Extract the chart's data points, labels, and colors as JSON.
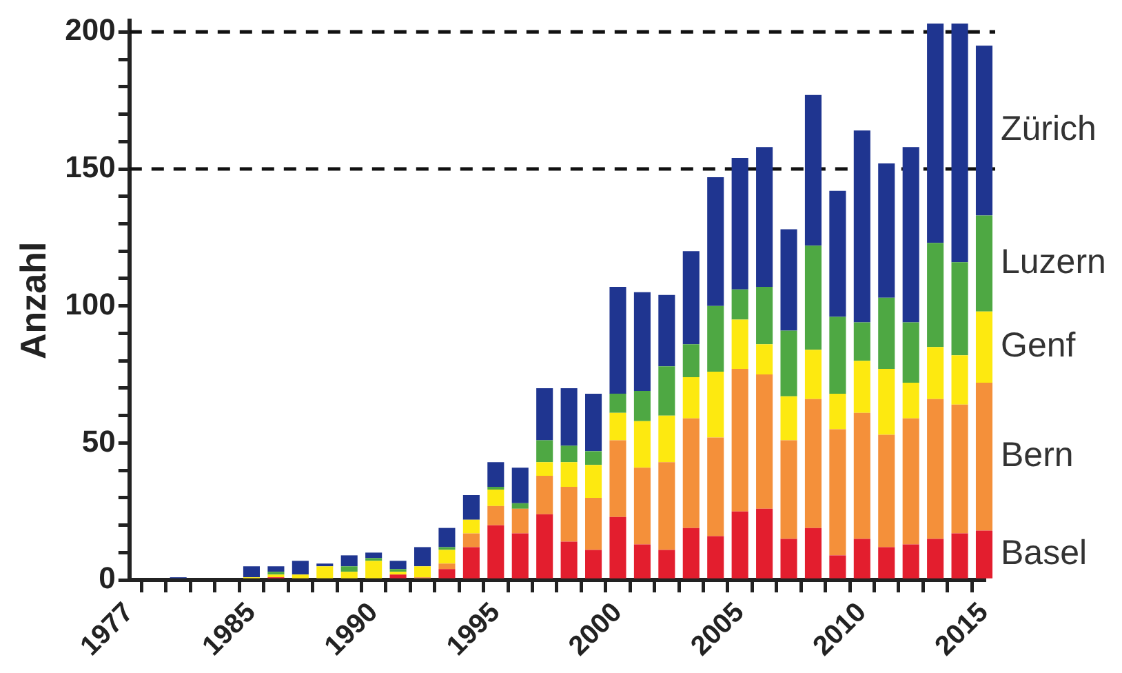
{
  "chart_data": {
    "type": "bar",
    "ylabel": "Anzahl",
    "stacked": true,
    "grid": false,
    "legend": false,
    "categories": [
      "1977",
      null,
      null,
      null,
      null,
      "1985",
      null,
      null,
      null,
      null,
      "1990",
      null,
      null,
      null,
      null,
      "1995",
      null,
      null,
      null,
      null,
      "2000",
      null,
      null,
      null,
      null,
      "2005",
      null,
      null,
      null,
      null,
      "2010",
      null,
      null,
      null,
      null,
      "2015"
    ],
    "series": [
      {
        "name": "Basel",
        "color": "#e31e2e",
        "values": [
          0,
          0,
          0,
          0,
          0,
          0,
          1,
          0,
          0,
          0,
          0,
          2,
          0,
          4,
          12,
          20,
          17,
          24,
          14,
          11,
          23,
          13,
          11,
          19,
          16,
          25,
          26,
          15,
          19,
          9,
          15,
          12,
          13,
          15,
          17,
          18
        ]
      },
      {
        "name": "Bern",
        "color": "#f4903a",
        "values": [
          0,
          0,
          0,
          0,
          0,
          0,
          0,
          0,
          0,
          0,
          0,
          0,
          1,
          2,
          5,
          7,
          9,
          14,
          20,
          19,
          28,
          28,
          32,
          40,
          36,
          52,
          49,
          36,
          47,
          46,
          46,
          41,
          46,
          51,
          47,
          54
        ]
      },
      {
        "name": "Genf",
        "color": "#fde910",
        "values": [
          0,
          0,
          0,
          0,
          0,
          1,
          1,
          2,
          5,
          3,
          7,
          1,
          4,
          5,
          5,
          6,
          0,
          5,
          9,
          12,
          10,
          17,
          17,
          15,
          24,
          18,
          11,
          16,
          18,
          13,
          19,
          24,
          13,
          19,
          18,
          26
        ]
      },
      {
        "name": "Luzern",
        "color": "#4ea843",
        "values": [
          0,
          0,
          0,
          0,
          0,
          0,
          1,
          0,
          0,
          2,
          1,
          1,
          0,
          1,
          0,
          1,
          2,
          8,
          6,
          5,
          7,
          11,
          18,
          12,
          24,
          11,
          21,
          24,
          38,
          28,
          14,
          26,
          22,
          38,
          34,
          35
        ]
      },
      {
        "name": "Zürich",
        "color": "#1f3590",
        "values": [
          0,
          0,
          1,
          0,
          0,
          4,
          2,
          5,
          1,
          4,
          2,
          3,
          7,
          7,
          9,
          9,
          13,
          19,
          21,
          21,
          39,
          36,
          26,
          34,
          47,
          48,
          51,
          37,
          55,
          46,
          70,
          49,
          64,
          80,
          87,
          62
        ]
      }
    ],
    "ylim": [
      0,
      204
    ],
    "yticks": [
      0,
      {
        "value": 10,
        "label": null
      },
      {
        "value": 20,
        "label": null
      },
      {
        "value": 30,
        "label": null
      },
      {
        "value": 40,
        "label": null
      },
      50,
      {
        "value": 60,
        "label": null
      },
      {
        "value": 70,
        "label": null
      },
      {
        "value": 80,
        "label": null
      },
      {
        "value": 90,
        "label": null
      },
      100,
      {
        "value": 110,
        "label": null
      },
      {
        "value": 120,
        "label": null
      },
      {
        "value": 130,
        "label": null
      },
      {
        "value": 140,
        "label": null
      },
      150,
      {
        "value": 160,
        "label": null
      },
      {
        "value": 170,
        "label": null
      },
      {
        "value": 180,
        "label": null
      },
      {
        "value": 190,
        "label": null
      },
      200
    ],
    "ref_lines": [
      {
        "axis": "y",
        "value": 150,
        "color": "#111111",
        "line_style": "dashed"
      },
      {
        "axis": "y",
        "value": 200,
        "color": "#111111",
        "line_style": "dashed"
      }
    ]
  }
}
